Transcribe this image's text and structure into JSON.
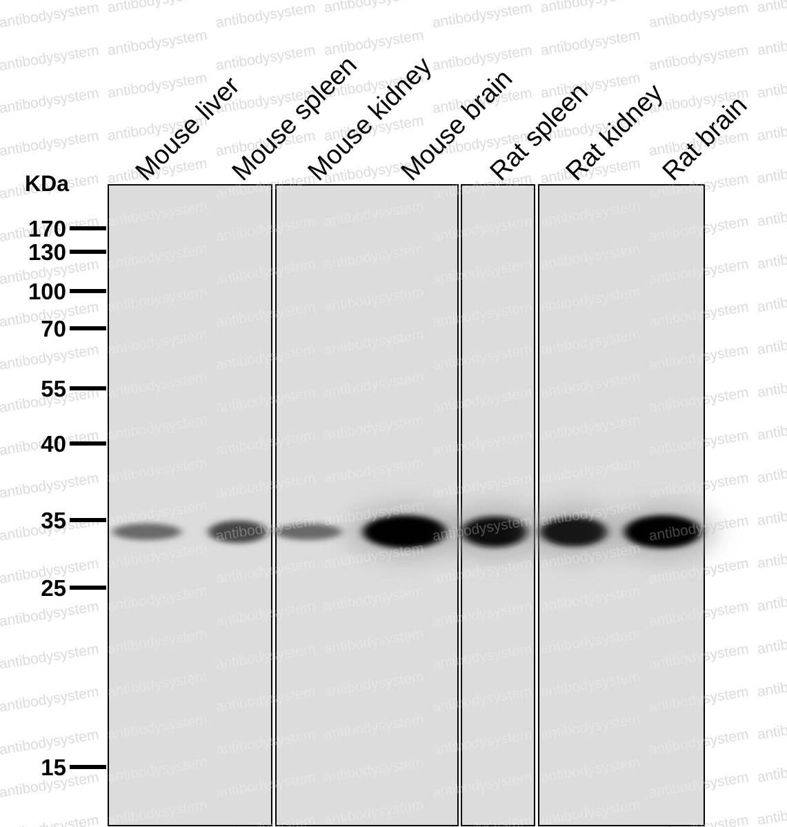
{
  "blot": {
    "unit_label": "KDa",
    "watermark": "antibodysystem",
    "lanes": [
      {
        "label": "Mouse liver",
        "band_intensity": 0.3
      },
      {
        "label": "Mouse spleen",
        "band_intensity": 0.55
      },
      {
        "label": "Mouse kidney",
        "band_intensity": 0.3
      },
      {
        "label": "Mouse brain",
        "band_intensity": 1.0
      },
      {
        "label": "Rat spleen",
        "band_intensity": 0.9
      },
      {
        "label": "Rat kidney",
        "band_intensity": 0.85
      },
      {
        "label": "Rat brain",
        "band_intensity": 1.0
      }
    ],
    "markers": [
      "170",
      "130",
      "100",
      "70",
      "55",
      "40",
      "35",
      "25",
      "15"
    ],
    "band_kda": 33
  }
}
